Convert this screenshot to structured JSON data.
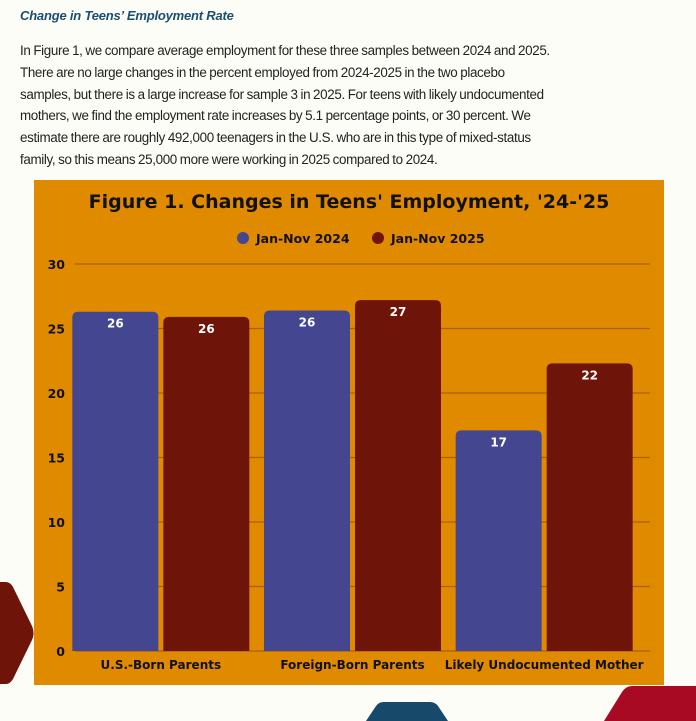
{
  "document": {
    "section_heading": "Change in Teens’ Employment Rate",
    "paragraph_lines": [
      "In Figure 1, we compare average employment for these three samples between 2024 and 2025.",
      "There are no large changes in the percent employed from 2024-2025 in the two placebo",
      "samples, but there is a large increase for sample 3 in 2025. For teens with likely undocumented",
      "mothers, we find the employment rate increases by 5.1 percentage points, or 30 percent. We",
      "estimate there are roughly 492,000 teenagers in the U.S. who are in this type of mixed-status",
      "family, so this means 25,000 more were working in 2025 compared to 2024."
    ]
  },
  "colors": {
    "panel_bg": "#E08A00",
    "series_2024": "#444690",
    "series_2025": "#6E1409",
    "heading": "#1B4F72",
    "deco_left": "#6E1409",
    "deco_blue": "#17496B",
    "deco_red": "#A80A24"
  },
  "chart_data": {
    "type": "bar",
    "title": "Figure 1. Changes in Teens' Employment, '24-'25",
    "xlabel": "",
    "ylabel": "",
    "categories": [
      "U.S.-Born Parents",
      "Foreign-Born Parents",
      "Likely Undocumented Mother"
    ],
    "series": [
      {
        "name": "Jan-Nov 2024",
        "values": [
          26.3,
          26.4,
          17.1
        ],
        "labels": [
          "26",
          "26",
          "17"
        ]
      },
      {
        "name": "Jan-Nov 2025",
        "values": [
          25.9,
          27.2,
          22.3
        ],
        "labels": [
          "26",
          "27",
          "22"
        ]
      }
    ],
    "ylim": [
      0,
      30
    ],
    "yticks": [
      0,
      5,
      10,
      15,
      20,
      25,
      30
    ],
    "grid": true,
    "legend_position": "top-center"
  }
}
